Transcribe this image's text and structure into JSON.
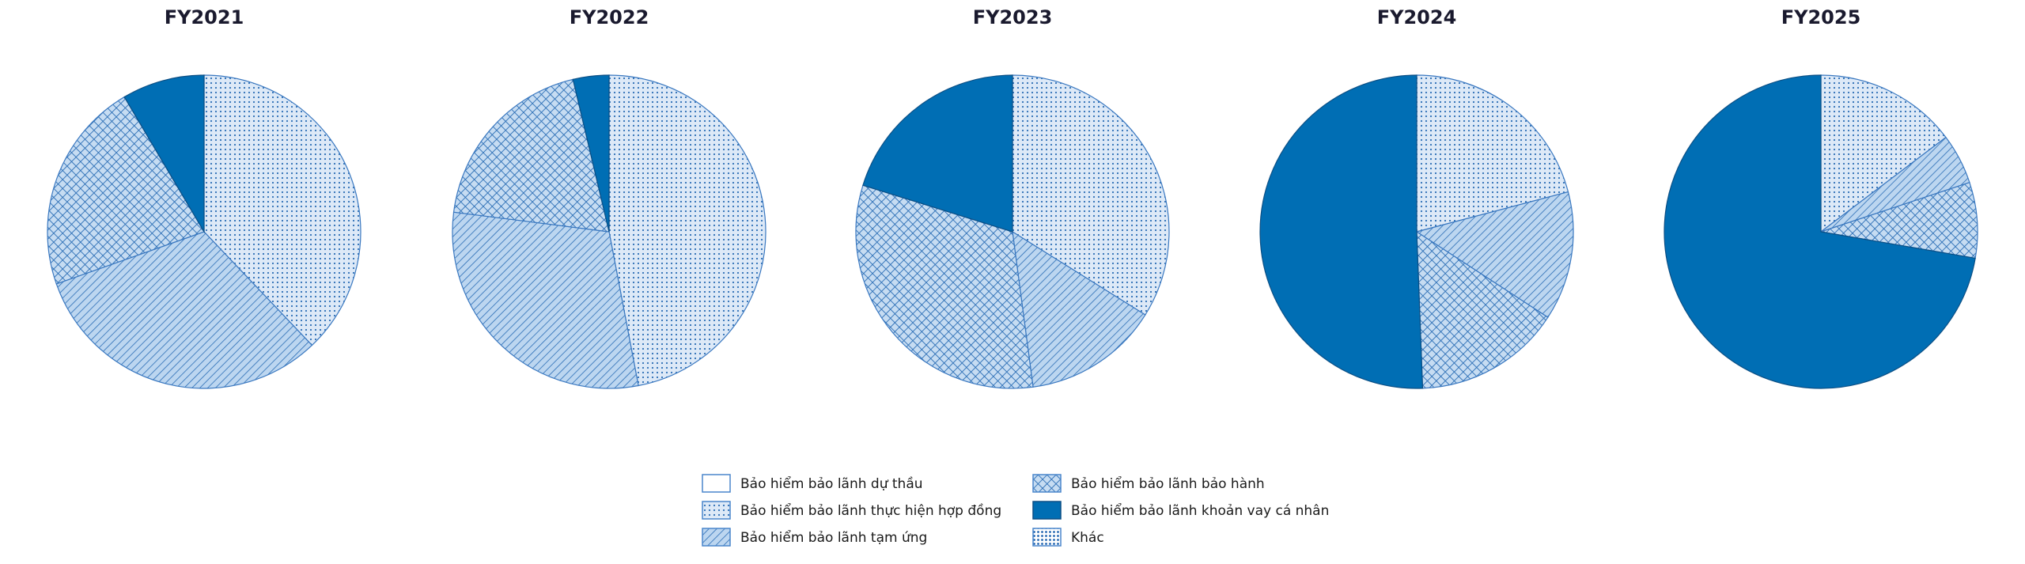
{
  "chart_data": [
    {
      "type": "pie",
      "title": "FY2021",
      "categories": [
        "Bảo hiểm bảo lãnh dự thầu",
        "Bảo hiểm bảo lãnh thực hiện hợp đồng",
        "Bảo hiểm bảo lãnh tạm ứng",
        "Bảo hiểm bảo lãnh bảo hành",
        "Bảo hiểm bảo lãnh khoản vay cá nhân",
        "Khác"
      ],
      "values": [
        0,
        37.9,
        31.7,
        21.9,
        8.5,
        0
      ]
    },
    {
      "type": "pie",
      "title": "FY2022",
      "categories": [
        "Bảo hiểm bảo lãnh dự thầu",
        "Bảo hiểm bảo lãnh thực hiện hợp đồng",
        "Bảo hiểm bảo lãnh tạm ứng",
        "Bảo hiểm bảo lãnh bảo hành",
        "Bảo hiểm bảo lãnh khoản vay cá nhân",
        "Khác"
      ],
      "values": [
        0,
        47.0,
        30.0,
        19.3,
        3.7,
        0
      ]
    },
    {
      "type": "pie",
      "title": "FY2023",
      "categories": [
        "Bảo hiểm bảo lãnh dự thầu",
        "Bảo hiểm bảo lãnh thực hiện hợp đồng",
        "Bảo hiểm bảo lãnh tạm ứng",
        "Bảo hiểm bảo lãnh bảo hành",
        "Bảo hiểm bảo lãnh khoản vay cá nhân",
        "Khác"
      ],
      "values": [
        0,
        33.9,
        14.0,
        31.9,
        20.2,
        0
      ]
    },
    {
      "type": "pie",
      "title": "FY2024",
      "categories": [
        "Bảo hiểm bảo lãnh dự thầu",
        "Bảo hiểm bảo lãnh thực hiện hợp đồng",
        "Bảo hiểm bảo lãnh tạm ứng",
        "Bảo hiểm bảo lãnh bảo hành",
        "Bảo hiểm bảo lãnh khoản vay cá nhân",
        "Khác"
      ],
      "values": [
        0,
        20.9,
        13.3,
        15.2,
        50.6,
        0
      ]
    },
    {
      "type": "pie",
      "title": "FY2025",
      "categories": [
        "Bảo hiểm bảo lãnh dự thầu",
        "Bảo hiểm bảo lãnh thực hiện hợp đồng",
        "Bảo hiểm bảo lãnh tạm ứng",
        "Bảo hiểm bảo lãnh bảo hành",
        "Bảo hiểm bảo lãnh khoản vay cá nhân",
        "Khác"
      ],
      "values": [
        0,
        14.7,
        5.2,
        7.8,
        72.3,
        0
      ]
    }
  ],
  "legend": {
    "placement": "bottom-center",
    "items": [
      {
        "label": "Bảo hiểm bảo lãnh dự thầu",
        "style": "white"
      },
      {
        "label": "Bảo hiểm bảo lãnh thực hiện hợp đồng",
        "style": "dots"
      },
      {
        "label": "Bảo hiểm bảo lãnh tạm ứng",
        "style": "diagonal"
      },
      {
        "label": "Bảo hiểm bảo lãnh bảo hành",
        "style": "crosshatch"
      },
      {
        "label": "Bảo hiểm bảo lãnh khoản vay cá nhân",
        "style": "solid"
      },
      {
        "label": "Khác",
        "style": "dense-dots"
      }
    ]
  },
  "colors": {
    "primary": "#006eb4",
    "light": "#c6dcf2",
    "edge": "#2a6db5",
    "title": "#1a1a2e"
  }
}
